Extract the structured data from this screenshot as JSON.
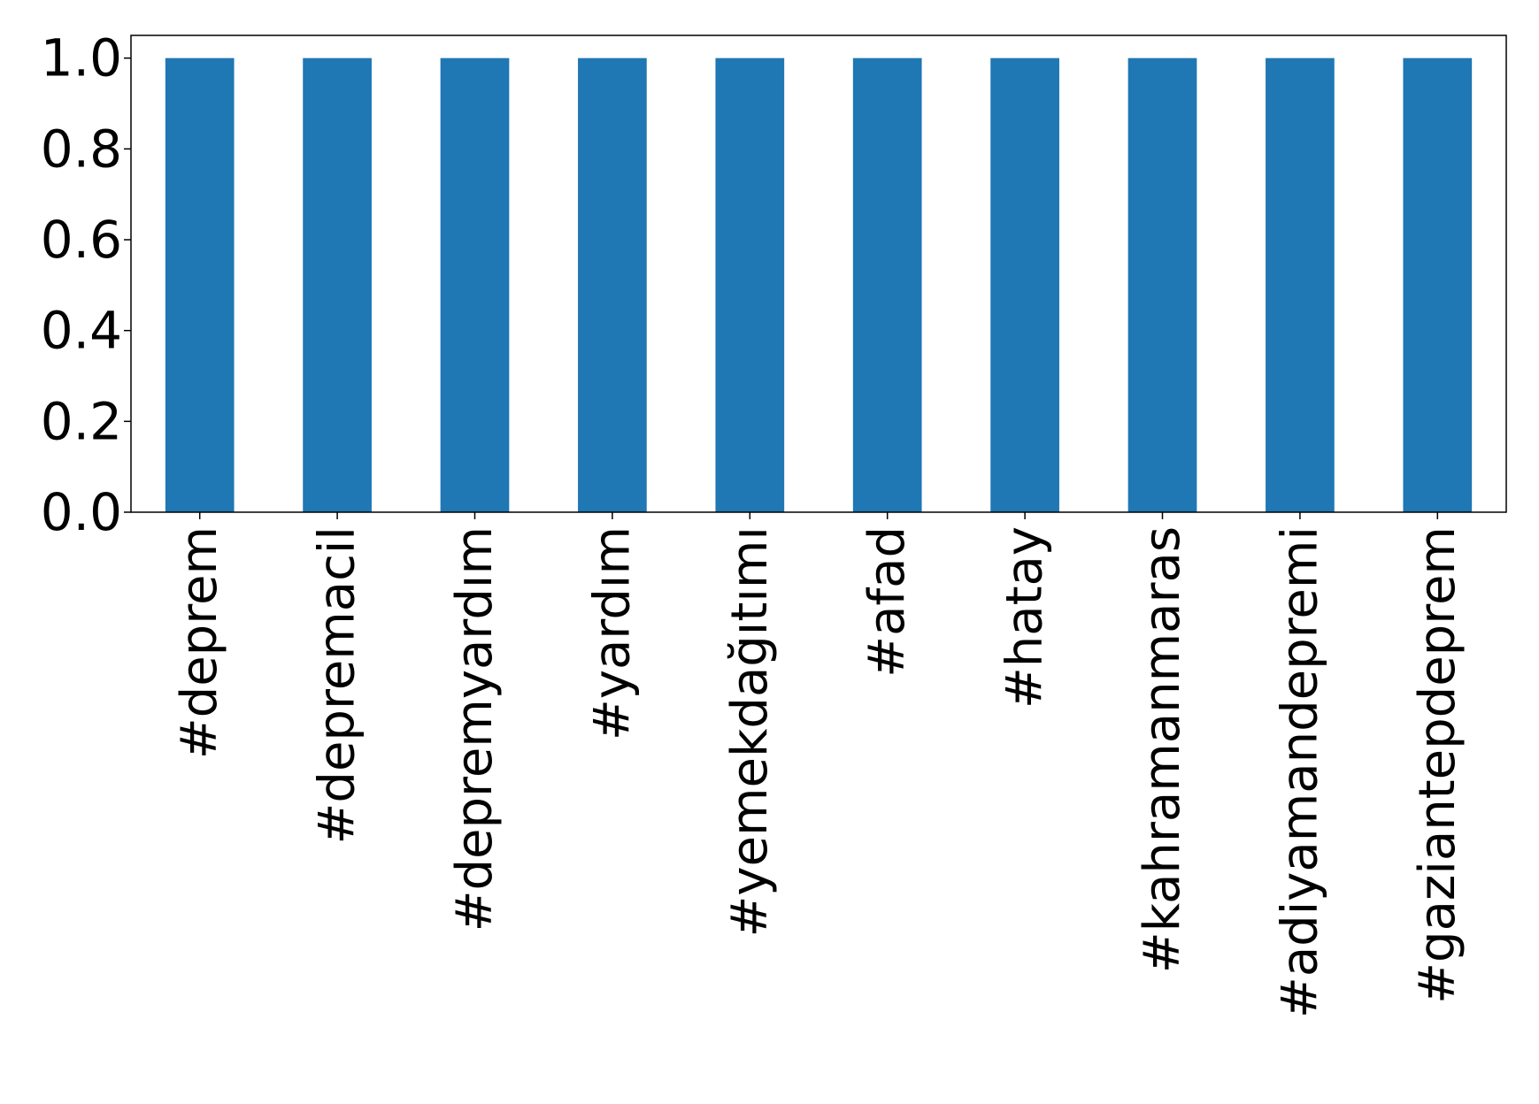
{
  "chart_data": {
    "type": "bar",
    "title": "",
    "xlabel": "",
    "ylabel": "",
    "categories": [
      "#deprem",
      "#depremacil",
      "#depremyardım",
      "#yardım",
      "#yemekdağıtımı",
      "#afad",
      "#hatay",
      "#kahramanmaras",
      "#adiyamandepremi",
      "#gaziantepdeprem"
    ],
    "values": [
      1.0,
      1.0,
      1.0,
      1.0,
      1.0,
      1.0,
      1.0,
      1.0,
      1.0,
      1.0
    ],
    "ylim": [
      0,
      1.05
    ],
    "yticks": [
      "0.0",
      "0.2",
      "0.4",
      "0.6",
      "0.8",
      "1.0"
    ],
    "grid": false,
    "legend": "none",
    "bar_color": "#1f77b4"
  }
}
